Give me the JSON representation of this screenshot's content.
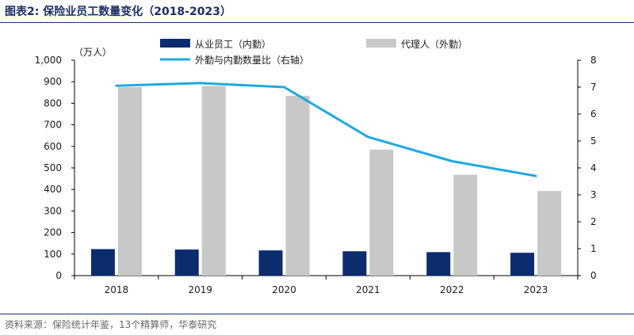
{
  "title": "图表2:  保险业员工数量变化（2018-2023）",
  "source": "资料来源：保险统计年鉴，13个精算师，华泰研究",
  "colors": {
    "employees": "#0c2c6e",
    "agents": "#c8c8c8",
    "ratio": "#1ea9e1",
    "axis": "#000000",
    "title": "#1b2f63"
  },
  "chart_data": {
    "type": "bar",
    "categories": [
      "2018",
      "2019",
      "2020",
      "2021",
      "2022",
      "2023"
    ],
    "series": [
      {
        "name": "从业员工（内勤）",
        "type": "bar",
        "axis": "left",
        "values": [
          123,
          121,
          117,
          113,
          109,
          106
        ]
      },
      {
        "name": "代理人（外勤）",
        "type": "bar",
        "axis": "left",
        "values": [
          875,
          880,
          835,
          585,
          468,
          393
        ]
      },
      {
        "name": "外勤与内勤数量比（右轴）",
        "type": "line",
        "axis": "right",
        "values": [
          7.05,
          7.15,
          7.0,
          5.15,
          4.25,
          3.7
        ]
      }
    ],
    "yunit": "（万人）",
    "ylim": [
      0,
      1000
    ],
    "yticks": [
      0,
      100,
      200,
      300,
      400,
      500,
      600,
      700,
      800,
      900,
      1000
    ],
    "ytick_labels": [
      "0",
      "100",
      "200",
      "300",
      "400",
      "500",
      "600",
      "700",
      "800",
      "900",
      "1,000"
    ],
    "y2lim": [
      0,
      8
    ],
    "y2ticks": [
      0,
      1,
      2,
      3,
      4,
      5,
      6,
      7,
      8
    ],
    "legend_position": "top"
  }
}
